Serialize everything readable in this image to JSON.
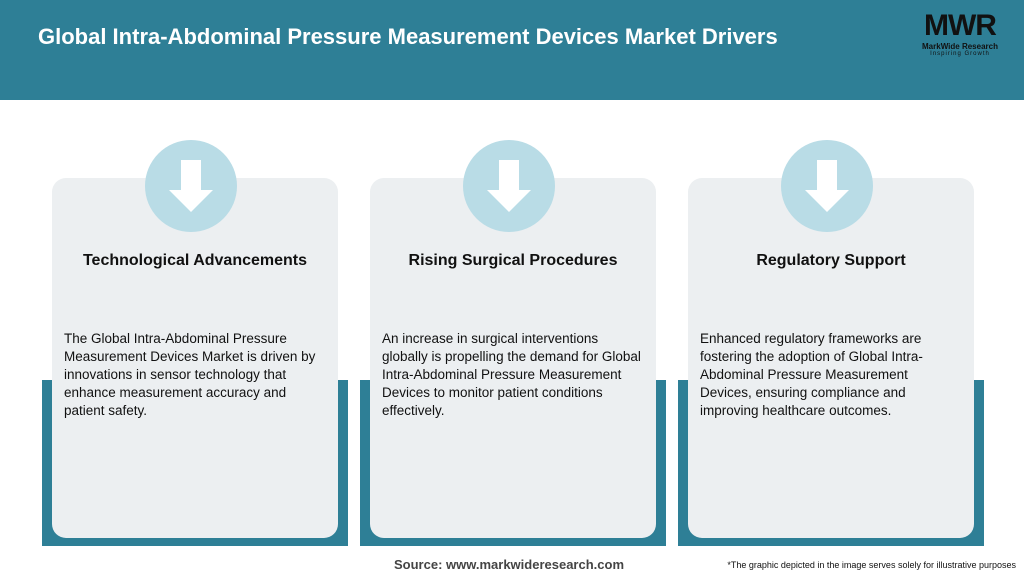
{
  "header": {
    "title": "Global Intra-Abdominal Pressure Measurement Devices Market Drivers",
    "logo": {
      "mark": "MWR",
      "name": "MarkWide Research",
      "tagline": "Inspiring Growth"
    }
  },
  "cards": [
    {
      "title": "Technological Advancements",
      "text": "The Global Intra-Abdominal Pressure Measurement Devices Market is driven by innovations in sensor technology that enhance measurement accuracy and patient safety."
    },
    {
      "title": "Rising Surgical Procedures",
      "text": "An increase in surgical interventions globally is propelling the demand for Global Intra-Abdominal Pressure Measurement Devices to monitor patient conditions effectively."
    },
    {
      "title": "Regulatory Support",
      "text": "Enhanced regulatory frameworks are fostering the adoption of Global Intra-Abdominal Pressure Measurement Devices, ensuring compliance and improving healthcare outcomes."
    }
  ],
  "footer": {
    "source": "Source: www.markwideresearch.com",
    "note": "*The graphic depicted in the image serves solely for illustrative purposes"
  }
}
